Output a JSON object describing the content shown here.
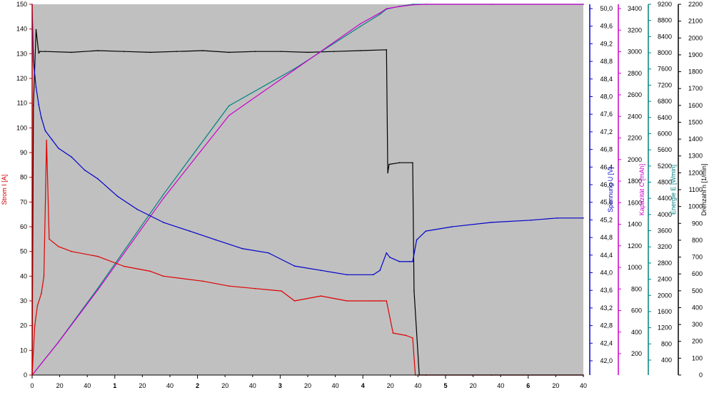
{
  "chart_data": {
    "type": "line",
    "plot_background": "#c0c0c0",
    "x_axis": {
      "ticks": [
        "0",
        "20",
        "40",
        "1",
        "20",
        "40",
        "2",
        "20",
        "40",
        "3",
        "20",
        "40",
        "4",
        "20",
        "40",
        "5",
        "20",
        "40",
        "6",
        "20",
        "40"
      ],
      "range": [
        0,
        840
      ],
      "unit_note": "minutes:seconds (minor ticks every 20 s)"
    },
    "left_axis": {
      "label": "Strom  I  [A]",
      "color": "#cc0000",
      "range": [
        0,
        150
      ],
      "ticks": [
        "0",
        "10",
        "20",
        "30",
        "40",
        "50",
        "60",
        "70",
        "80",
        "90",
        "100",
        "110",
        "120",
        "130",
        "140",
        "150"
      ]
    },
    "right_axes": [
      {
        "key": "voltage",
        "label": "Spannung  U  [V]",
        "color": "#0000cc",
        "range": [
          41.6,
          50.1
        ],
        "ticks": [
          "42,0",
          "42,4",
          "42,8",
          "43,2",
          "43,6",
          "44,0",
          "44,4",
          "44,8",
          "45,2",
          "45,6",
          "46,0",
          "46,4",
          "46,8",
          "47,2",
          "47,6",
          "48,0",
          "48,4",
          "48,8",
          "49,2",
          "49,6",
          "50,0"
        ]
      },
      {
        "key": "capacity",
        "label": "Kapazität  C  [mAh]",
        "color": "#cc00cc",
        "range": [
          0,
          3400
        ],
        "ticks": [
          "200",
          "400",
          "600",
          "800",
          "1000",
          "1200",
          "1400",
          "1600",
          "1800",
          "2000",
          "2200",
          "2400",
          "2600",
          "2800",
          "3000",
          "3200",
          "3400"
        ]
      },
      {
        "key": "energy",
        "label": "Energie  E  [Wmin]",
        "color": "#008080",
        "range": [
          0,
          9200
        ],
        "ticks": [
          "400",
          "800",
          "1200",
          "1600",
          "2000",
          "2400",
          "2800",
          "3200",
          "3600",
          "4000",
          "4400",
          "4800",
          "5200",
          "5600",
          "6000",
          "6400",
          "6800",
          "7200",
          "7600",
          "8000",
          "8400",
          "8800",
          "9200"
        ]
      },
      {
        "key": "rpm",
        "label": "Drehzahl  n  [1/min]",
        "color": "#000000",
        "range": [
          0,
          2200
        ],
        "ticks": [
          "0",
          "100",
          "200",
          "300",
          "400",
          "500",
          "600",
          "700",
          "800",
          "900",
          "1000",
          "1100",
          "1200",
          "1300",
          "1400",
          "1500",
          "1600",
          "1700",
          "1800",
          "1900",
          "2000",
          "2100",
          "2200"
        ]
      }
    ],
    "series": [
      {
        "name": "Strom I",
        "axis": "left",
        "color": "#e00000",
        "x": [
          0,
          4,
          8,
          14,
          18,
          22,
          26,
          40,
          60,
          100,
          140,
          180,
          200,
          260,
          300,
          340,
          380,
          400,
          440,
          480,
          520,
          530,
          540,
          550,
          570,
          580,
          584,
          590,
          600,
          700,
          840
        ],
        "y": [
          0,
          20,
          28,
          33,
          40,
          95,
          55,
          52,
          50,
          48,
          44,
          42,
          40,
          38,
          36,
          35,
          34,
          30,
          32,
          30,
          30,
          30,
          30,
          17,
          16,
          15,
          0,
          0,
          0,
          0,
          0
        ]
      },
      {
        "name": "Spannung U",
        "axis": "voltage",
        "color": "#0000cc",
        "x": [
          0,
          2,
          6,
          10,
          14,
          20,
          30,
          40,
          60,
          80,
          100,
          130,
          160,
          200,
          240,
          280,
          320,
          360,
          400,
          440,
          480,
          520,
          530,
          540,
          545,
          560,
          575,
          580,
          586,
          600,
          640,
          700,
          760,
          800,
          840
        ],
        "y": [
          50.1,
          48.8,
          48.2,
          47.8,
          47.5,
          47.2,
          47.0,
          46.8,
          46.6,
          46.3,
          46.1,
          45.7,
          45.4,
          45.1,
          44.9,
          44.7,
          44.5,
          44.4,
          44.1,
          44.0,
          43.9,
          43.9,
          44.0,
          44.4,
          44.3,
          44.2,
          44.2,
          44.2,
          44.7,
          44.9,
          45.0,
          45.1,
          45.15,
          45.2,
          45.2
        ]
      },
      {
        "name": "Kapazität C",
        "axis": "capacity",
        "color": "#cc00cc",
        "x": [
          0,
          40,
          100,
          200,
          300,
          400,
          500,
          530,
          540,
          560,
          580,
          600,
          700,
          840
        ],
        "y": [
          0,
          300,
          780,
          1620,
          2380,
          2800,
          3220,
          3320,
          3360,
          3380,
          3395,
          3400,
          3400,
          3400
        ]
      },
      {
        "name": "Energie E",
        "axis": "energy",
        "color": "#008080",
        "x": [
          0,
          40,
          100,
          200,
          300,
          400,
          500,
          530,
          540,
          560,
          580,
          600,
          700,
          840
        ],
        "y": [
          0,
          820,
          2150,
          4480,
          6680,
          7600,
          8650,
          8950,
          9080,
          9150,
          9200,
          9200,
          9200,
          9200
        ]
      },
      {
        "name": "Drehzahl n",
        "axis": "rpm",
        "color": "#000000",
        "x": [
          0,
          2,
          6,
          10,
          12,
          20,
          60,
          100,
          140,
          180,
          220,
          260,
          300,
          340,
          380,
          420,
          460,
          500,
          540,
          542,
          544,
          560,
          580,
          582,
          590,
          600,
          700,
          840
        ],
        "y": [
          0,
          1600,
          2050,
          1910,
          1920,
          1920,
          1915,
          1925,
          1920,
          1915,
          1920,
          1925,
          1915,
          1920,
          1920,
          1915,
          1920,
          1925,
          1930,
          1200,
          1250,
          1260,
          1260,
          500,
          0,
          0,
          0,
          0
        ]
      }
    ]
  }
}
